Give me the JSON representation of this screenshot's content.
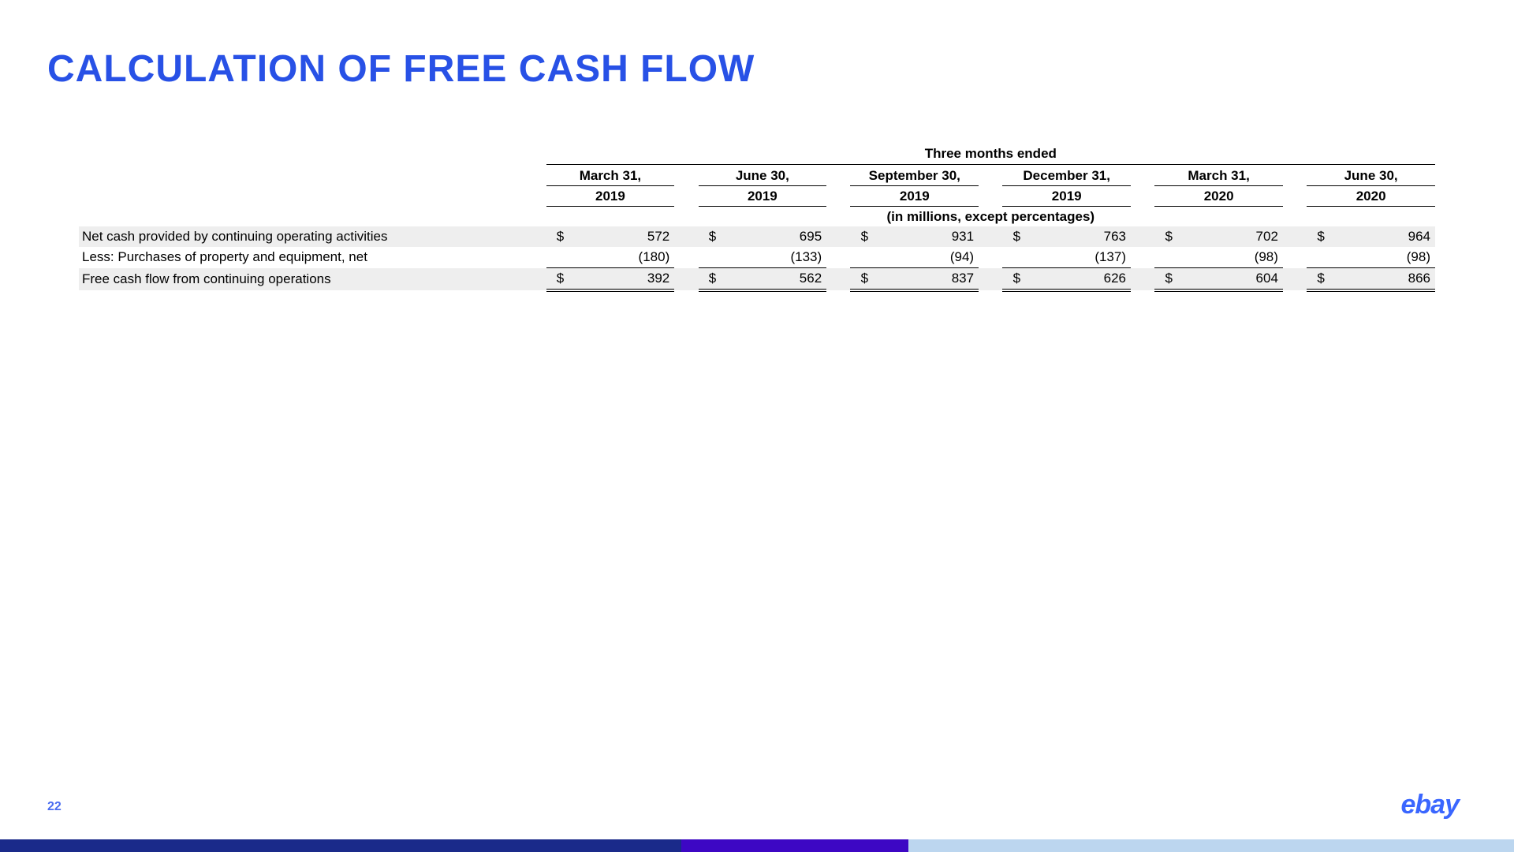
{
  "title": "CALCULATION OF FREE CASH FLOW",
  "spanner": "Three months ended",
  "units_note": "(in millions, except percentages)",
  "periods": [
    {
      "month": "March 31,",
      "year": "2019"
    },
    {
      "month": "June 30,",
      "year": "2019"
    },
    {
      "month": "September 30,",
      "year": "2019"
    },
    {
      "month": "December 31,",
      "year": "2019"
    },
    {
      "month": "March 31,",
      "year": "2020"
    },
    {
      "month": "June 30,",
      "year": "2020"
    }
  ],
  "rows": [
    {
      "label": "Net cash provided by continuing operating activities",
      "show_sym": true,
      "values": [
        "572",
        "695",
        "931",
        "763",
        "702",
        "964"
      ],
      "shade": true,
      "total": false,
      "sub": false
    },
    {
      "label": "Less: Purchases of property and equipment, net",
      "show_sym": false,
      "values": [
        "(180)",
        "(133)",
        "(94)",
        "(137)",
        "(98)",
        "(98)"
      ],
      "shade": false,
      "total": false,
      "sub": true
    },
    {
      "label": "Free cash flow from continuing operations",
      "show_sym": true,
      "values": [
        "392",
        "562",
        "837",
        "626",
        "604",
        "866"
      ],
      "shade": true,
      "total": true,
      "sub": false
    }
  ],
  "currency_symbol": "$",
  "page_number": "22",
  "logo_text": "ebay",
  "colors": {
    "title": "#2851e6",
    "page_num": "#4a6cf0",
    "logo": "#3a66ff",
    "row_shade": "#eeeeee",
    "border": "#000000"
  },
  "bottom_bar": {
    "segments": [
      {
        "color": "#1a2a8a",
        "width_pct": 45
      },
      {
        "color": "#3d07c4",
        "width_pct": 15
      },
      {
        "color": "#bcd6ef",
        "width_pct": 40
      }
    ]
  }
}
